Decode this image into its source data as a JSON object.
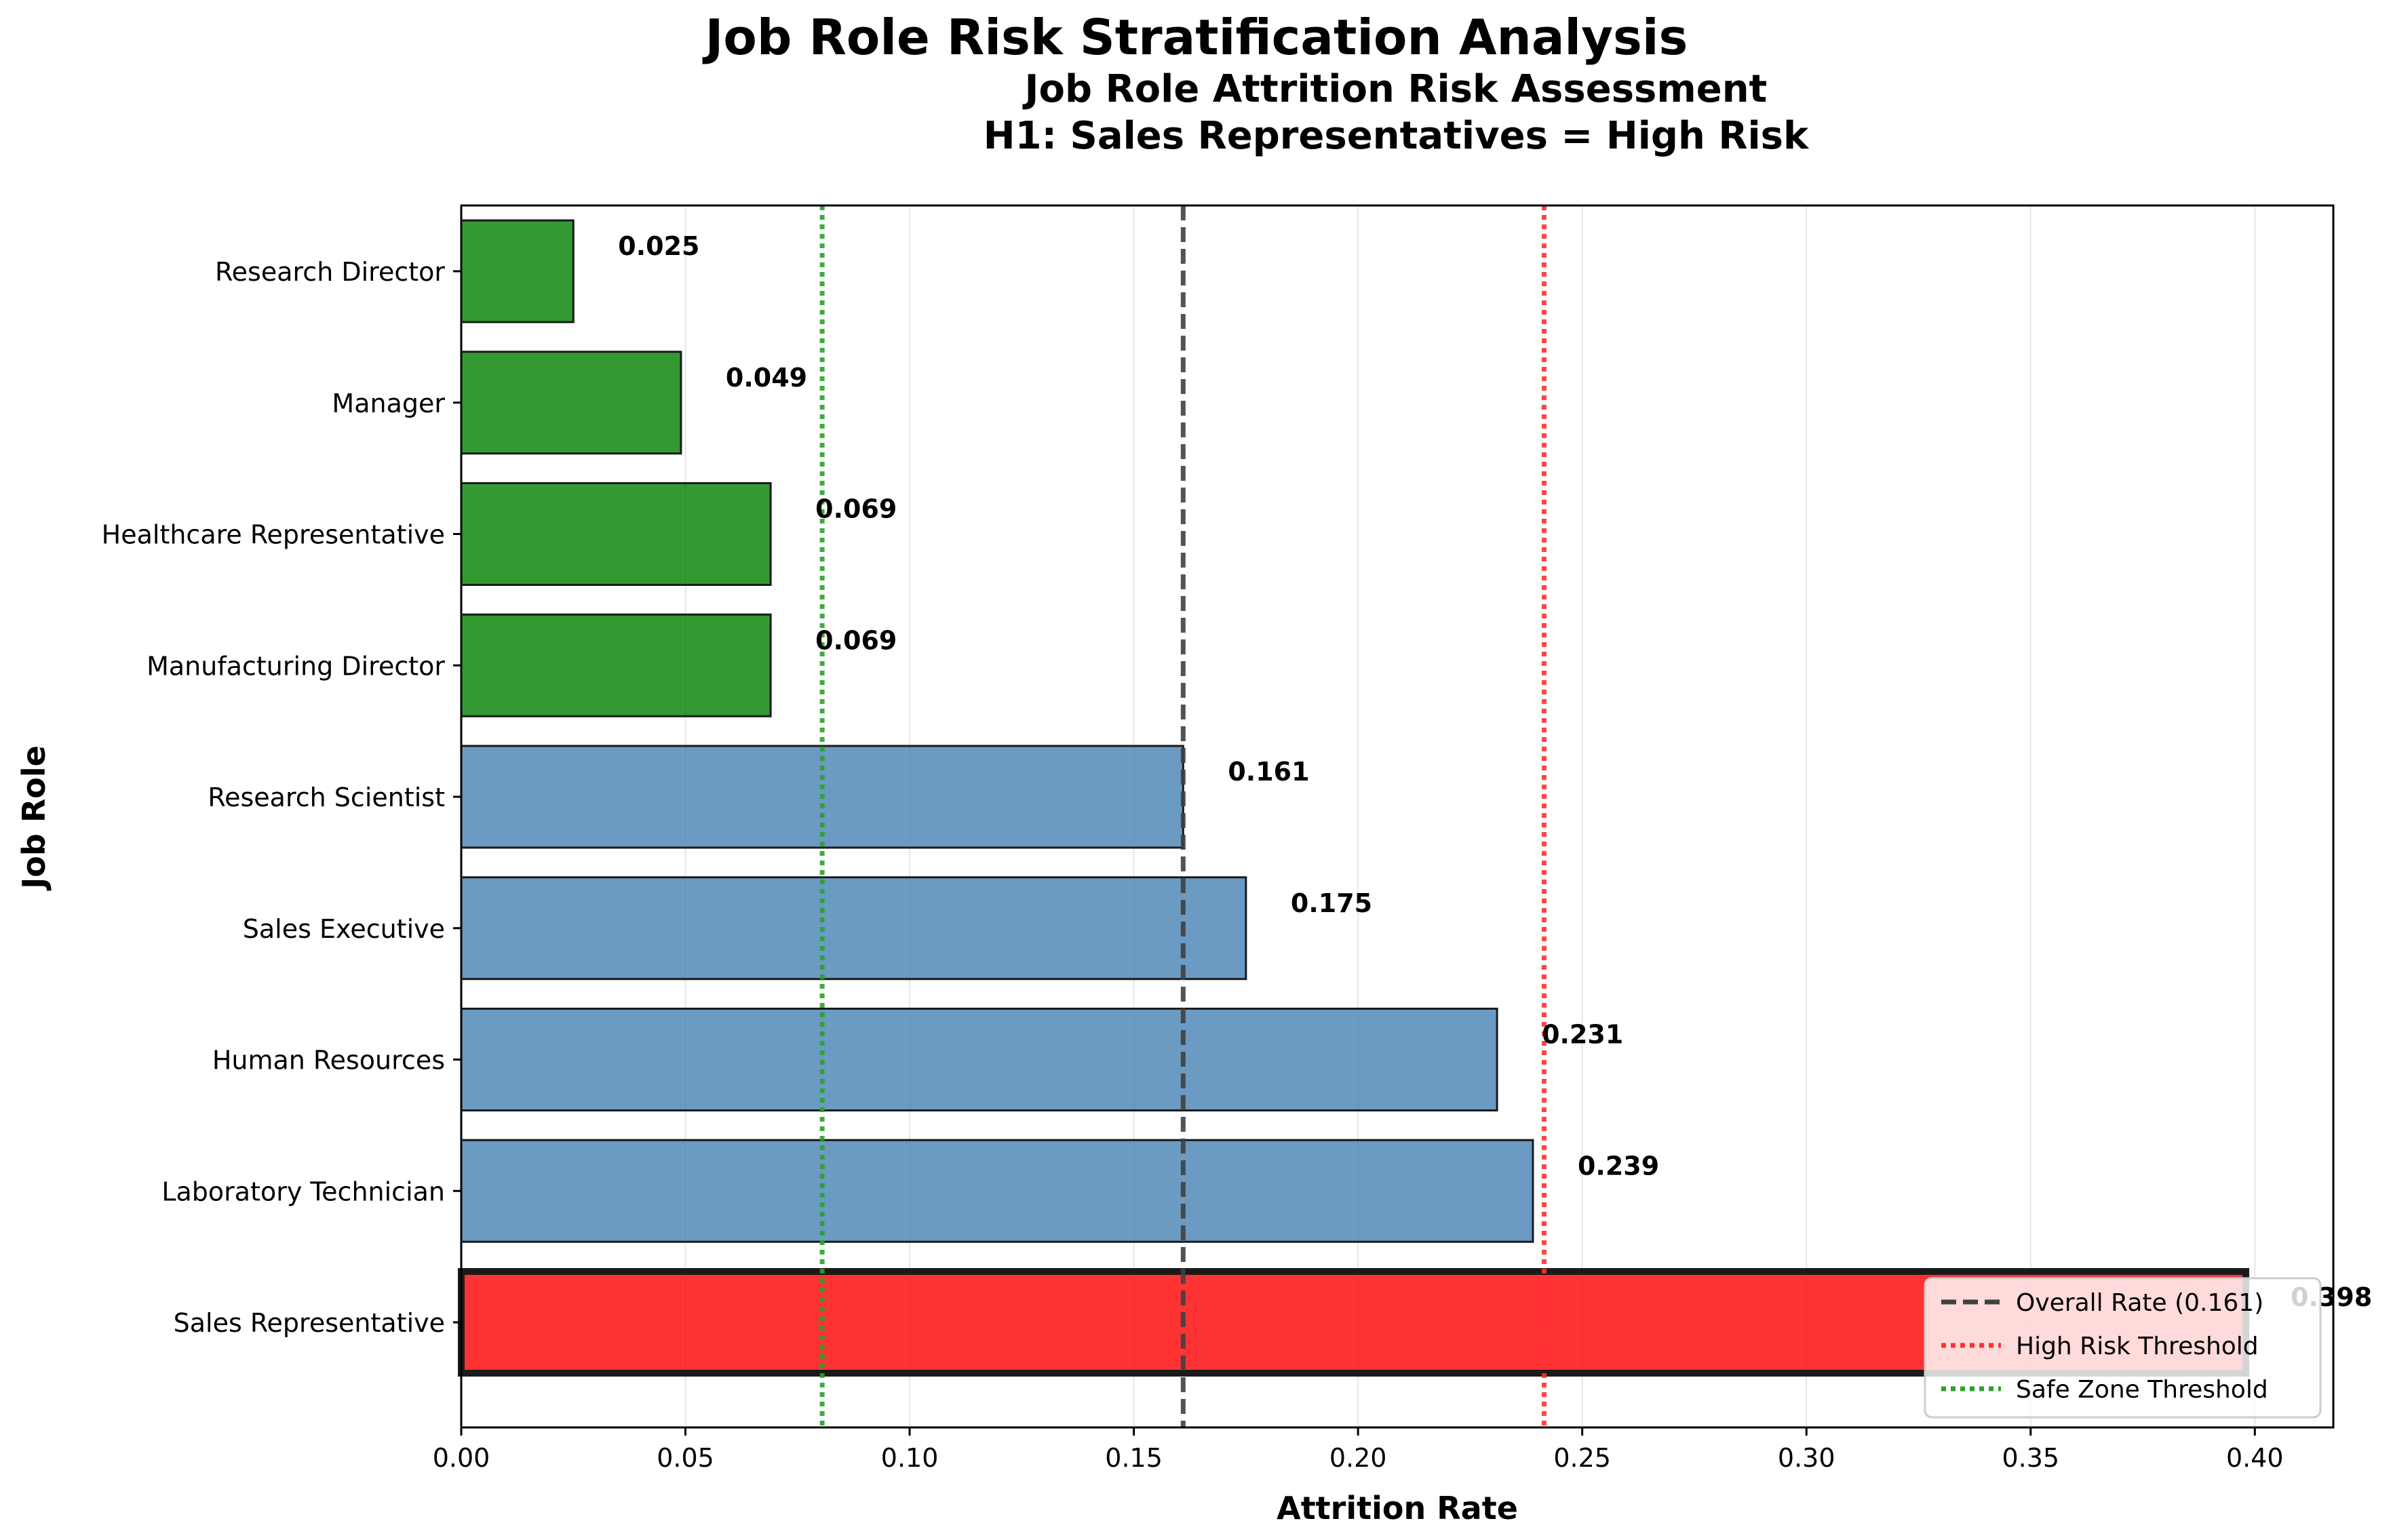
{
  "figure_title": "Job Role Risk Stratification Analysis",
  "chart_data": {
    "type": "bar",
    "orientation": "horizontal",
    "title_lines": [
      "Job Role Attrition Risk Assessment",
      "H1: Sales Representatives = High Risk"
    ],
    "xlabel": "Attrition Rate",
    "ylabel": "Job Role",
    "xlim": [
      0,
      0.4175
    ],
    "xticks": [
      "0.00",
      "0.05",
      "0.10",
      "0.15",
      "0.20",
      "0.25",
      "0.30",
      "0.35",
      "0.40"
    ],
    "xtick_values": [
      0,
      0.05,
      0.1,
      0.15,
      0.2,
      0.25,
      0.3,
      0.35,
      0.4
    ],
    "grid": "vertical, light",
    "categories": [
      "Sales Representative",
      "Laboratory Technician",
      "Human Resources",
      "Sales Executive",
      "Research Scientist",
      "Manufacturing Director",
      "Healthcare Representative",
      "Manager",
      "Research Director"
    ],
    "values": [
      0.398,
      0.239,
      0.231,
      0.175,
      0.161,
      0.069,
      0.069,
      0.049,
      0.025
    ],
    "value_labels": [
      "0.398",
      "0.239",
      "0.231",
      "0.175",
      "0.161",
      "0.069",
      "0.069",
      "0.049",
      "0.025"
    ],
    "bar_colors": [
      "#ff0000",
      "#4682b4",
      "#4682b4",
      "#4682b4",
      "#4682b4",
      "#008000",
      "#008000",
      "#008000",
      "#008000"
    ],
    "highlighted_category": "Sales Representative",
    "reference_lines": [
      {
        "label": "Overall Rate (0.161)",
        "value": 0.161,
        "style": "dashed",
        "color": "#404040"
      },
      {
        "label": "High Risk Threshold",
        "value": 0.2415,
        "style": "dotted",
        "color": "#ff3030"
      },
      {
        "label": "Safe Zone Threshold",
        "value": 0.0805,
        "style": "dotted",
        "color": "#2ca02c"
      }
    ],
    "legend_position": "lower-right"
  }
}
